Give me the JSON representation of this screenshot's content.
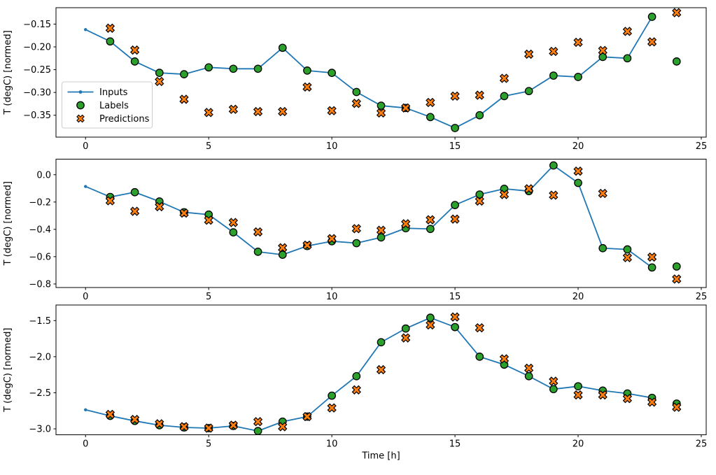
{
  "figure": {
    "background": "#ffffff",
    "xlabel": "Time [h]",
    "ylabel": "T (degC) [normed]"
  },
  "colors": {
    "inputs_line": "#1f77b4",
    "labels_marker": "#2ca02c",
    "predictions_marker": "#ff7f0e",
    "marker_edge": "#000000",
    "legend_border": "#cccccc",
    "spine": "#000000"
  },
  "legend": {
    "entries": [
      {
        "label": "Inputs",
        "type": "line"
      },
      {
        "label": "Labels",
        "type": "circle"
      },
      {
        "label": "Predictions",
        "type": "x"
      }
    ]
  },
  "chart_data": [
    {
      "type": "line",
      "title": "",
      "xlabel": "",
      "ylabel": "T (degC) [normed]",
      "xlim": [
        -1.2,
        25.2
      ],
      "ylim": [
        -0.398,
        -0.114
      ],
      "x_ticks": [
        0,
        5,
        10,
        15,
        20,
        25
      ],
      "x_tick_labels": [
        "0",
        "5",
        "10",
        "15",
        "20",
        "25"
      ],
      "y_ticks": [
        -0.15,
        -0.2,
        -0.25,
        -0.3,
        -0.35
      ],
      "y_tick_labels": [
        "−0.15",
        "−0.20",
        "−0.25",
        "−0.30",
        "−0.35"
      ],
      "grid": false,
      "legend_visible": true,
      "legend_position": "center left",
      "series": [
        {
          "name": "Inputs",
          "kind": "line",
          "x": [
            0,
            1,
            2,
            3,
            4,
            5,
            6,
            7,
            8,
            9,
            10,
            11,
            12,
            13,
            14,
            15,
            16,
            17,
            18,
            19,
            20,
            21,
            22,
            23
          ],
          "y": [
            -0.162,
            -0.188,
            -0.232,
            -0.257,
            -0.26,
            -0.245,
            -0.248,
            -0.248,
            -0.202,
            -0.252,
            -0.257,
            -0.299,
            -0.329,
            -0.334,
            -0.354,
            -0.378,
            -0.35,
            -0.308,
            -0.297,
            -0.263,
            -0.266,
            -0.222,
            -0.225,
            -0.134
          ]
        },
        {
          "name": "Labels",
          "kind": "scatter_circle",
          "x": [
            1,
            2,
            3,
            4,
            5,
            6,
            7,
            8,
            9,
            10,
            11,
            12,
            13,
            14,
            15,
            16,
            17,
            18,
            19,
            20,
            21,
            22,
            23,
            24
          ],
          "y": [
            -0.188,
            -0.232,
            -0.257,
            -0.26,
            -0.245,
            -0.248,
            -0.248,
            -0.202,
            -0.252,
            -0.257,
            -0.299,
            -0.329,
            -0.334,
            -0.354,
            -0.378,
            -0.35,
            -0.308,
            -0.297,
            -0.263,
            -0.266,
            -0.222,
            -0.225,
            -0.134,
            -0.232
          ]
        },
        {
          "name": "Predictions",
          "kind": "scatter_x",
          "x": [
            1,
            2,
            3,
            4,
            5,
            6,
            7,
            8,
            9,
            10,
            11,
            12,
            13,
            14,
            15,
            16,
            17,
            18,
            19,
            20,
            21,
            22,
            23,
            24
          ],
          "y": [
            -0.159,
            -0.207,
            -0.276,
            -0.315,
            -0.344,
            -0.337,
            -0.342,
            -0.342,
            -0.288,
            -0.34,
            -0.324,
            -0.345,
            -0.334,
            -0.322,
            -0.308,
            -0.306,
            -0.269,
            -0.216,
            -0.21,
            -0.19,
            -0.208,
            -0.166,
            -0.189,
            -0.125
          ]
        }
      ]
    },
    {
      "type": "line",
      "title": "",
      "xlabel": "",
      "ylabel": "T (degC) [normed]",
      "xlim": [
        -1.2,
        25.2
      ],
      "ylim": [
        -0.826,
        0.114
      ],
      "x_ticks": [
        0,
        5,
        10,
        15,
        20,
        25
      ],
      "x_tick_labels": [
        "0",
        "5",
        "10",
        "15",
        "20",
        "25"
      ],
      "y_ticks": [
        0.0,
        -0.2,
        -0.4,
        -0.6,
        -0.8
      ],
      "y_tick_labels": [
        "0.0",
        "−0.2",
        "−0.4",
        "−0.6",
        "−0.8"
      ],
      "grid": false,
      "legend_visible": false,
      "series": [
        {
          "name": "Inputs",
          "kind": "line",
          "x": [
            0,
            1,
            2,
            3,
            4,
            5,
            6,
            7,
            8,
            9,
            10,
            11,
            12,
            13,
            14,
            15,
            16,
            17,
            18,
            19,
            20,
            21,
            22,
            23
          ],
          "y": [
            -0.086,
            -0.163,
            -0.128,
            -0.196,
            -0.275,
            -0.292,
            -0.422,
            -0.564,
            -0.586,
            -0.522,
            -0.487,
            -0.501,
            -0.459,
            -0.392,
            -0.397,
            -0.222,
            -0.145,
            -0.103,
            -0.12,
            0.068,
            -0.06,
            -0.538,
            -0.547,
            -0.679
          ]
        },
        {
          "name": "Labels",
          "kind": "scatter_circle",
          "x": [
            1,
            2,
            3,
            4,
            5,
            6,
            7,
            8,
            9,
            10,
            11,
            12,
            13,
            14,
            15,
            16,
            17,
            18,
            19,
            20,
            21,
            22,
            23,
            24
          ],
          "y": [
            -0.163,
            -0.128,
            -0.196,
            -0.275,
            -0.292,
            -0.422,
            -0.564,
            -0.586,
            -0.522,
            -0.487,
            -0.501,
            -0.459,
            -0.392,
            -0.397,
            -0.222,
            -0.145,
            -0.103,
            -0.12,
            0.068,
            -0.06,
            -0.538,
            -0.547,
            -0.679,
            -0.672
          ]
        },
        {
          "name": "Predictions",
          "kind": "scatter_x",
          "x": [
            1,
            2,
            3,
            4,
            5,
            6,
            7,
            8,
            9,
            10,
            11,
            12,
            13,
            14,
            15,
            16,
            17,
            18,
            19,
            20,
            21,
            22,
            23,
            24
          ],
          "y": [
            -0.191,
            -0.268,
            -0.234,
            -0.281,
            -0.333,
            -0.35,
            -0.419,
            -0.535,
            -0.516,
            -0.468,
            -0.395,
            -0.407,
            -0.359,
            -0.33,
            -0.325,
            -0.193,
            -0.145,
            -0.103,
            -0.15,
            0.026,
            -0.137,
            -0.607,
            -0.603,
            -0.764
          ]
        }
      ]
    },
    {
      "type": "line",
      "title": "",
      "xlabel": "Time [h]",
      "ylabel": "T (degC) [normed]",
      "xlim": [
        -1.2,
        25.2
      ],
      "ylim": [
        -3.082,
        -1.284
      ],
      "x_ticks": [
        0,
        5,
        10,
        15,
        20,
        25
      ],
      "x_tick_labels": [
        "0",
        "5",
        "10",
        "15",
        "20",
        "25"
      ],
      "y_ticks": [
        -1.5,
        -2.0,
        -2.5,
        -3.0
      ],
      "y_tick_labels": [
        "−1.5",
        "−2.0",
        "−2.5",
        "−3.0"
      ],
      "grid": false,
      "legend_visible": false,
      "series": [
        {
          "name": "Inputs",
          "kind": "line",
          "x": [
            0,
            1,
            2,
            3,
            4,
            5,
            6,
            7,
            8,
            9,
            10,
            11,
            12,
            13,
            14,
            15,
            16,
            17,
            18,
            19,
            20,
            21,
            22,
            23
          ],
          "y": [
            -2.736,
            -2.82,
            -2.89,
            -2.95,
            -2.98,
            -2.99,
            -2.96,
            -3.03,
            -2.9,
            -2.83,
            -2.54,
            -2.27,
            -1.8,
            -1.61,
            -1.46,
            -1.59,
            -2.0,
            -2.11,
            -2.27,
            -2.45,
            -2.41,
            -2.47,
            -2.51,
            -2.57
          ]
        },
        {
          "name": "Labels",
          "kind": "scatter_circle",
          "x": [
            1,
            2,
            3,
            4,
            5,
            6,
            7,
            8,
            9,
            10,
            11,
            12,
            13,
            14,
            15,
            16,
            17,
            18,
            19,
            20,
            21,
            22,
            23,
            24
          ],
          "y": [
            -2.82,
            -2.89,
            -2.95,
            -2.98,
            -2.99,
            -2.96,
            -3.03,
            -2.9,
            -2.83,
            -2.54,
            -2.27,
            -1.8,
            -1.61,
            -1.46,
            -1.59,
            -2.0,
            -2.11,
            -2.27,
            -2.45,
            -2.41,
            -2.47,
            -2.51,
            -2.57,
            -2.65
          ]
        },
        {
          "name": "Predictions",
          "kind": "scatter_x",
          "x": [
            1,
            2,
            3,
            4,
            5,
            6,
            7,
            8,
            9,
            10,
            11,
            12,
            13,
            14,
            15,
            16,
            17,
            18,
            19,
            20,
            21,
            22,
            23,
            24
          ],
          "y": [
            -2.8,
            -2.87,
            -2.93,
            -2.97,
            -2.99,
            -2.95,
            -2.9,
            -2.97,
            -2.83,
            -2.71,
            -2.46,
            -2.18,
            -1.74,
            -1.56,
            -1.45,
            -1.6,
            -2.03,
            -2.16,
            -2.34,
            -2.53,
            -2.53,
            -2.58,
            -2.63,
            -2.7
          ]
        }
      ]
    }
  ]
}
